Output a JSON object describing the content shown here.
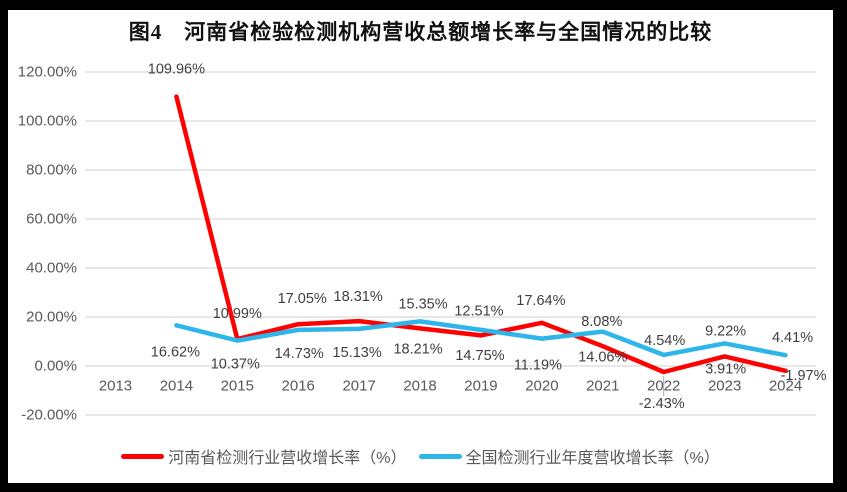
{
  "title": "图4　河南省检验检测机构营收总额增长率与全国情况的比较",
  "chart_data": {
    "type": "line",
    "x_labels": [
      "2013",
      "2014",
      "2015",
      "2016",
      "2017",
      "2018",
      "2019",
      "2020",
      "2021",
      "2022",
      "2023",
      "2024"
    ],
    "ylim": [
      -20,
      120
    ],
    "yticks": {
      "values": [
        120,
        100,
        80,
        60,
        40,
        20,
        0,
        -20
      ],
      "labels": [
        "120.00%",
        "100.00%",
        "80.00%",
        "60.00%",
        "40.00%",
        "20.00%",
        "0.00%",
        "-20.00%"
      ]
    },
    "grid": true,
    "legend_position": "bottom",
    "series": [
      {
        "name": "河南省检测行业营收增长率（%）",
        "color": "#FF0000",
        "values": [
          null,
          109.96,
          10.99,
          17.05,
          18.31,
          15.35,
          12.51,
          17.64,
          8.08,
          -2.43,
          3.91,
          -1.97
        ],
        "point_labels": [
          null,
          "109.96%",
          "10.99%",
          "17.05%",
          "18.31%",
          "15.35%",
          "12.51%",
          "17.64%",
          "8.08%",
          "-2.43%",
          "3.91%",
          "-1.97%"
        ],
        "label_offsets": [
          null,
          [
            0,
            -27
          ],
          [
            0,
            -25
          ],
          [
            4,
            -25
          ],
          [
            -1,
            -24
          ],
          [
            3,
            -24
          ],
          [
            -2,
            -24
          ],
          [
            -1,
            -22
          ],
          [
            -1,
            -24
          ],
          [
            -2,
            32
          ],
          [
            1,
            13
          ],
          [
            18,
            5
          ]
        ],
        "leader_line_index": 9
      },
      {
        "name": "全国检测行业年度营收增长率（%）",
        "color": "#2EB6EB",
        "values": [
          null,
          16.62,
          10.37,
          14.73,
          15.13,
          18.21,
          14.75,
          11.19,
          14.06,
          4.54,
          9.22,
          4.41
        ],
        "point_labels": [
          null,
          "16.62%",
          "10.37%",
          "14.73%",
          "15.13%",
          "18.21%",
          "14.75%",
          "11.19%",
          "14.06%",
          "4.54%",
          "9.22%",
          "4.41%"
        ],
        "label_offsets": [
          null,
          [
            -1,
            27
          ],
          [
            -2,
            24
          ],
          [
            1,
            24
          ],
          [
            -2,
            24
          ],
          [
            -2,
            28
          ],
          [
            -1,
            26
          ],
          [
            -4,
            27
          ],
          [
            0,
            26
          ],
          [
            1,
            -14
          ],
          [
            1,
            -12
          ],
          [
            7,
            -17
          ]
        ]
      }
    ],
    "colors": {
      "grid": "#D9D9D9",
      "axis_text": "#595959",
      "data_label_text": "#3F3F3F",
      "leader": "#A6A6A6",
      "frame": "#000000",
      "plot_background": "#FFFFFF"
    }
  }
}
